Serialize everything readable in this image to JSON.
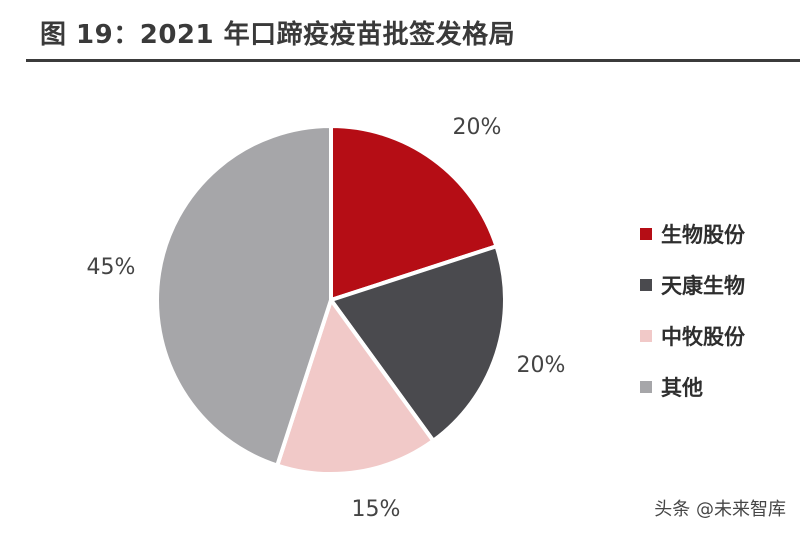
{
  "title": "图 19：2021 年口蹄疫疫苗批签发格局",
  "watermark": "头条 @未来智库",
  "chart_data": {
    "type": "pie",
    "title": "图 19：2021 年口蹄疫疫苗批签发格局",
    "labels": [
      "生物股份",
      "天康生物",
      "中牧股份",
      "其他"
    ],
    "values": [
      20,
      20,
      15,
      45
    ],
    "value_labels": [
      "20%",
      "20%",
      "15%",
      "45%"
    ],
    "colors": [
      "#b50d15",
      "#4a4a4e",
      "#f1c9c8",
      "#a6a6a9"
    ],
    "start": "12 o'clock, clockwise",
    "legend_position": "right"
  }
}
